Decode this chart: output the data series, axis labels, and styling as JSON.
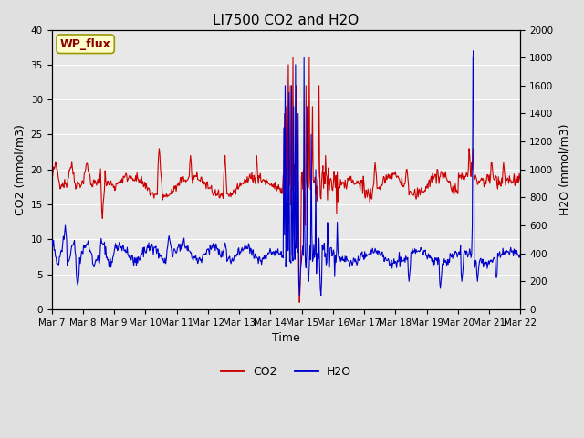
{
  "title": "LI7500 CO2 and H2O",
  "xlabel": "Time",
  "ylabel_left": "CO2 (mmol/m3)",
  "ylabel_right": "H2O (mmol/m3)",
  "annotation": "WP_flux",
  "annotation_color": "#8B0000",
  "annotation_bg": "#FFFFCC",
  "annotation_edge": "#999900",
  "x_tick_labels": [
    "Mar 7",
    "Mar 8",
    "Mar 9",
    "Mar 10",
    "Mar 11",
    "Mar 12",
    "Mar 13",
    "Mar 14",
    "Mar 15",
    "Mar 16",
    "Mar 17",
    "Mar 18",
    "Mar 19",
    "Mar 20",
    "Mar 21",
    "Mar 22"
  ],
  "co2_color": "#CC0000",
  "h2o_color": "#0000CC",
  "ylim_left": [
    0,
    40
  ],
  "ylim_right": [
    0,
    2000
  ],
  "background_color": "#E0E0E0",
  "plot_bg_color": "#E8E8E8",
  "grid_color": "#FFFFFF",
  "line_width": 0.8,
  "legend_co2": "CO2",
  "legend_h2o": "H2O",
  "title_fontsize": 11,
  "axis_fontsize": 9,
  "tick_fontsize": 7.5
}
